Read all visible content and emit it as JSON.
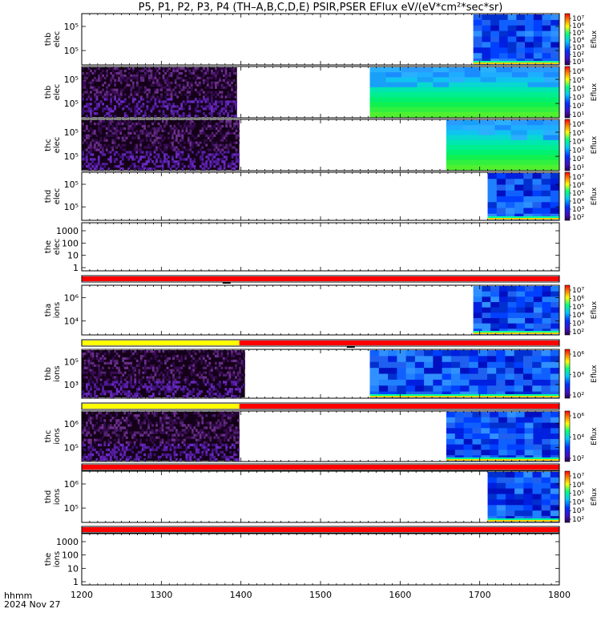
{
  "chart_data": {
    "type": "heatmap",
    "title": "P5, P1, P2, P3, P4 (TH–A,B,C,D,E) PSIR,PSER EFlux eV/(eV*cm²*sec*sr)",
    "x_range": [
      1200,
      1800
    ],
    "x_ticks": [
      "1200",
      "1300",
      "1400",
      "1500",
      "1600",
      "1700",
      "1800"
    ],
    "footer_label": "hhmm",
    "footer_date": "2024 Nov 27",
    "colorbar_label": "Eflux",
    "panels": [
      {
        "label1": "thb",
        "label2": "elec",
        "kind": "spec",
        "y_ticks": [
          "10⁵",
          "10⁵"
        ],
        "blocks": [
          {
            "x0": 1692,
            "x1": 1800,
            "style": "blue"
          }
        ],
        "cbar": [
          "10⁷",
          "10⁶",
          "10⁵",
          "10⁴",
          "10³",
          "10²",
          "10¹"
        ]
      },
      {
        "label1": "thb",
        "label2": "elec",
        "kind": "spec",
        "y_ticks": [
          "10⁵",
          "10⁵"
        ],
        "blocks": [
          {
            "x0": 1200,
            "x1": 1395,
            "style": "purple"
          },
          {
            "x0": 1562,
            "x1": 1800,
            "style": "green"
          }
        ],
        "cbar": [
          "10⁶",
          "10⁵",
          "10⁴",
          "10³",
          "10²",
          "10¹"
        ]
      },
      {
        "label1": "thc",
        "label2": "elec",
        "kind": "spec",
        "y_ticks": [
          "10⁵",
          "10⁵"
        ],
        "blocks": [
          {
            "x0": 1200,
            "x1": 1398,
            "style": "purple"
          },
          {
            "x0": 1658,
            "x1": 1800,
            "style": "green"
          }
        ],
        "cbar": [
          "10⁶",
          "10⁵",
          "10⁴",
          "10³",
          "10²",
          "10¹"
        ]
      },
      {
        "label1": "thd",
        "label2": "elec",
        "kind": "spec",
        "y_ticks": [
          "10⁵",
          "10⁵"
        ],
        "blocks": [
          {
            "x0": 1710,
            "x1": 1800,
            "style": "blue"
          }
        ],
        "cbar": [
          "10⁷",
          "10⁶",
          "10⁵",
          "10⁴",
          "10³",
          "10²"
        ]
      },
      {
        "label1": "the",
        "label2": "elec",
        "kind": "line",
        "y_ticks": [
          "1000",
          "100",
          "10",
          "1"
        ]
      },
      {
        "kind": "flag",
        "segments": [
          {
            "x0": 1200,
            "x1": 1800,
            "color": "#ff0000"
          }
        ],
        "marker": 1382
      },
      {
        "label1": "tha",
        "label2": "ions",
        "kind": "spec",
        "y_ticks": [
          "10⁶",
          "10⁴"
        ],
        "blocks": [
          {
            "x0": 1692,
            "x1": 1800,
            "style": "blue"
          }
        ],
        "cbar": [
          "10⁷",
          "10⁶",
          "10⁵",
          "10⁴",
          "10³",
          "10²"
        ]
      },
      {
        "kind": "flag",
        "segments": [
          {
            "x0": 1200,
            "x1": 1398,
            "color": "#ffff00"
          },
          {
            "x0": 1398,
            "x1": 1800,
            "color": "#ff0000"
          }
        ],
        "marker": 1538
      },
      {
        "label1": "thb",
        "label2": "ions",
        "kind": "spec",
        "y_ticks": [
          "10⁵",
          "10³"
        ],
        "blocks": [
          {
            "x0": 1200,
            "x1": 1405,
            "style": "purple"
          },
          {
            "x0": 1562,
            "x1": 1800,
            "style": "blue"
          }
        ],
        "cbar": [
          "10⁶",
          "10⁴",
          "10²"
        ]
      },
      {
        "kind": "flag",
        "segments": [
          {
            "x0": 1200,
            "x1": 1398,
            "color": "#ffff00"
          },
          {
            "x0": 1398,
            "x1": 1800,
            "color": "#ff0000"
          }
        ]
      },
      {
        "label1": "thc",
        "label2": "ions",
        "kind": "spec",
        "y_ticks": [
          "10⁶",
          "10⁵"
        ],
        "blocks": [
          {
            "x0": 1200,
            "x1": 1398,
            "style": "purple"
          },
          {
            "x0": 1658,
            "x1": 1800,
            "style": "blue"
          }
        ],
        "cbar": [
          "10⁶",
          "10⁴",
          "10²"
        ]
      },
      {
        "kind": "flag",
        "segments": [
          {
            "x0": 1200,
            "x1": 1800,
            "color": "#ff0000"
          }
        ]
      },
      {
        "label1": "thd",
        "label2": "ions",
        "kind": "spec",
        "y_ticks": [
          "10⁶",
          "10⁵"
        ],
        "blocks": [
          {
            "x0": 1710,
            "x1": 1800,
            "style": "blue"
          }
        ],
        "cbar": [
          "10⁷",
          "10⁶",
          "10⁵",
          "10⁴",
          "10³",
          "10²"
        ]
      },
      {
        "kind": "flag",
        "segments": [
          {
            "x0": 1200,
            "x1": 1800,
            "color": "#ff0000"
          }
        ]
      },
      {
        "label1": "the",
        "label2": "ions",
        "kind": "line",
        "y_ticks": [
          "1000",
          "100",
          "10",
          "1"
        ]
      }
    ]
  }
}
